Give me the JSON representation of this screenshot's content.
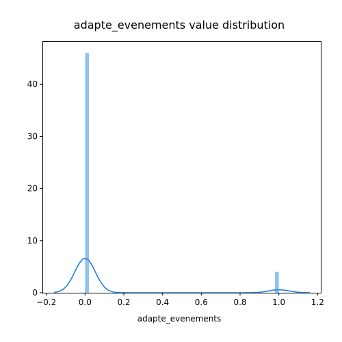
{
  "chart_data": {
    "type": "histogram",
    "title": "adapte_evenements value distribution",
    "xlabel": "adapte_evenements",
    "ylabel": "",
    "xlim": [
      -0.22,
      1.22
    ],
    "ylim": [
      0,
      48.3
    ],
    "x_ticks": [
      -0.2,
      0.0,
      0.2,
      0.4,
      0.6,
      0.8,
      1.0,
      1.2
    ],
    "x_tick_labels": [
      "−0.2",
      "0.0",
      "0.2",
      "0.4",
      "0.6",
      "0.8",
      "1.0",
      "1.2"
    ],
    "y_ticks": [
      0,
      10,
      20,
      30,
      40
    ],
    "y_tick_labels": [
      "0",
      "10",
      "20",
      "30",
      "40"
    ],
    "grid": false,
    "bars": [
      {
        "x0": 0.0,
        "x1": 0.02,
        "height": 46.0
      },
      {
        "x0": 0.98,
        "x1": 1.0,
        "height": 4.0
      }
    ],
    "kde": {
      "x_range": [
        -0.16,
        1.16
      ],
      "components": [
        {
          "mean": 0.0,
          "std": 0.053,
          "peak": 6.6
        },
        {
          "mean": 1.0,
          "std": 0.053,
          "peak": 0.57
        }
      ]
    },
    "colors": {
      "bar": "#92c4f0",
      "line": "#1f7fd8"
    }
  }
}
